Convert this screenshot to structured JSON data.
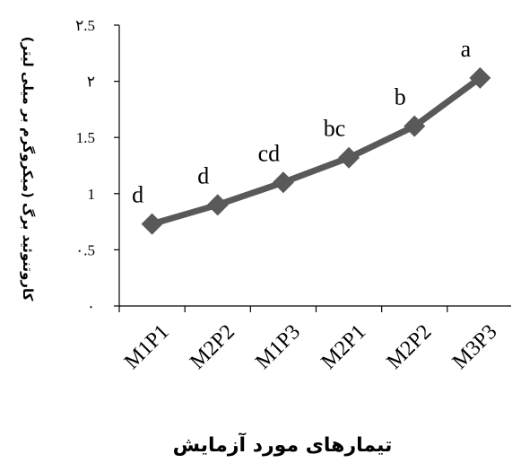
{
  "chart_data": {
    "type": "line",
    "categories": [
      "M1P1",
      "M2P2",
      "M1P3",
      "M2P1",
      "M2P2",
      "M3P3"
    ],
    "series": [
      {
        "values": [
          0.73,
          0.9,
          1.1,
          1.32,
          1.6,
          2.03
        ],
        "labels": [
          "d",
          "d",
          "cd",
          "bc",
          "b",
          "a"
        ]
      }
    ],
    "y_ticks": [
      {
        "value": 0,
        "label": "٠"
      },
      {
        "value": 0.5,
        "label": "٠.5"
      },
      {
        "value": 1,
        "label": "1"
      },
      {
        "value": 1.5,
        "label": "1.5"
      },
      {
        "value": 2,
        "label": "٢"
      },
      {
        "value": 2.5,
        "label": "٢.5"
      }
    ],
    "ylim": [
      0,
      2.5
    ],
    "xlabel": "تیمارهای مورد آزمایش",
    "ylabel": "کاروتنوئید برگ (میکروگرم بر میلی لیتر)",
    "grid": false,
    "legend": "none",
    "line_color": "#595959",
    "marker_color": "#595959"
  }
}
